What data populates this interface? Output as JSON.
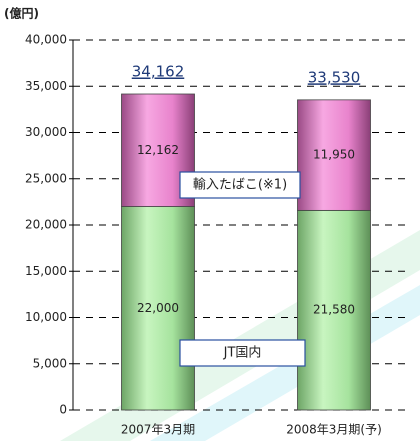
{
  "chart_data": {
    "type": "stacked_bar",
    "unit_label": "(億円)",
    "categories": [
      "2007年3月期",
      "2008年3月期(予)"
    ],
    "series": [
      {
        "name": "JT国内",
        "color": "#a6e39e",
        "values": [
          22000,
          21580
        ],
        "value_labels": [
          "22,000",
          "21,580"
        ]
      },
      {
        "name": "輸入たばこ(※1)",
        "color": "#e883cc",
        "values": [
          12162,
          11950
        ],
        "value_labels": [
          "12,162",
          "11,950"
        ]
      }
    ],
    "totals": {
      "values": [
        34162,
        33530
      ],
      "value_labels": [
        "34,162",
        "33,530"
      ]
    },
    "ylim": [
      0,
      40000
    ],
    "yticks": [
      {
        "value": 0,
        "label": "0"
      },
      {
        "value": 5000,
        "label": "5,000"
      },
      {
        "value": 10000,
        "label": "10,000"
      },
      {
        "value": 15000,
        "label": "15,000"
      },
      {
        "value": 20000,
        "label": "20,000"
      },
      {
        "value": 25000,
        "label": "25,000"
      },
      {
        "value": 30000,
        "label": "30,000"
      },
      {
        "value": 35000,
        "label": "35,000"
      },
      {
        "value": 40000,
        "label": "40,000"
      }
    ],
    "grid": true
  }
}
